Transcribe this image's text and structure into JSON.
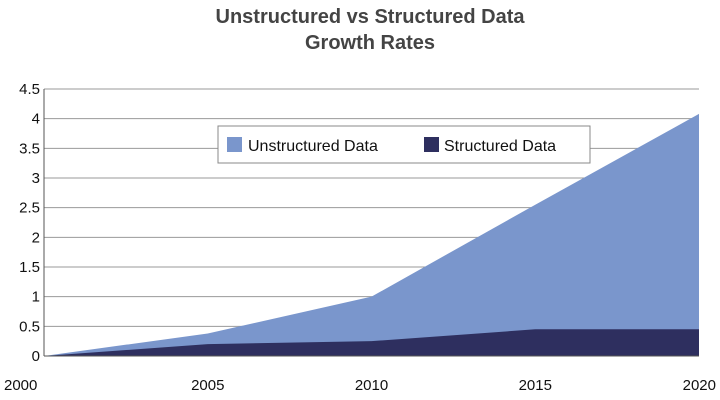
{
  "chart_data": {
    "type": "area",
    "title_line1": "Unstructured vs Structured Data",
    "title_line2": "Growth Rates",
    "xlabel": "",
    "ylabel": "",
    "x_ticks": [
      "2000",
      "2005",
      "2010",
      "2015",
      "2020"
    ],
    "y_ticks": [
      "0",
      "0.5",
      "1",
      "1.5",
      "2",
      "2.5",
      "3",
      "3.5",
      "4",
      "4.5"
    ],
    "xlim": [
      2000,
      2020
    ],
    "ylim": [
      0,
      4.5
    ],
    "grid": "horizontal",
    "stacked": false,
    "legend_placement": "top-center",
    "x": [
      2000,
      2005,
      2010,
      2015,
      2020
    ],
    "series": [
      {
        "name": "Unstructured  Data",
        "color": "#7a96cc",
        "values": [
          0,
          0.38,
          1.0,
          2.55,
          4.08
        ]
      },
      {
        "name": "Structured Data",
        "color": "#2e2f5f",
        "values": [
          0,
          0.2,
          0.25,
          0.45,
          0.45
        ]
      }
    ]
  }
}
